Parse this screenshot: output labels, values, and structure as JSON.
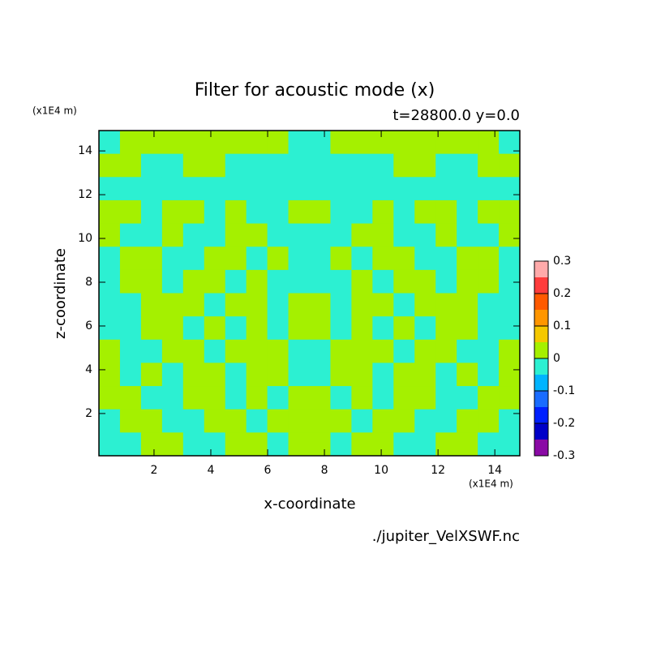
{
  "chart_data": {
    "type": "contour",
    "title": "Filter for acoustic mode (x)",
    "subtitle": "t=28800.0 y=0.0",
    "x_label": "x-coordinate",
    "y_label": "z-coordinate",
    "x_unit": "(x1E4 m)",
    "y_unit": "(x1E4 m)",
    "footer": "./jupiter_VelXSWF.nc",
    "xlim": [
      0.06,
      14.88
    ],
    "ylim": [
      0.07,
      14.93
    ],
    "xticks": [
      2,
      4,
      6,
      8,
      10,
      12,
      14
    ],
    "yticks": [
      2,
      4,
      6,
      8,
      10,
      12,
      14
    ],
    "z": [
      [
        -0.02,
        0.02,
        0.02,
        0.02,
        0.02,
        0.02,
        0.02,
        0.02,
        0.02,
        -0.02,
        -0.02,
        0.02,
        0.02,
        0.02,
        0.02,
        0.02,
        0.02,
        0.02,
        0.02,
        -0.02
      ],
      [
        0.02,
        0.02,
        -0.02,
        -0.02,
        0.02,
        0.02,
        -0.02,
        -0.02,
        -0.02,
        -0.02,
        -0.02,
        -0.02,
        -0.02,
        -0.02,
        0.02,
        0.02,
        -0.02,
        -0.02,
        0.02,
        0.02
      ],
      [
        -0.02,
        -0.02,
        -0.02,
        -0.02,
        -0.02,
        -0.02,
        -0.02,
        -0.02,
        -0.02,
        -0.02,
        -0.02,
        -0.02,
        -0.02,
        -0.02,
        -0.02,
        -0.02,
        -0.02,
        -0.02,
        -0.02,
        -0.02
      ],
      [
        0.02,
        0.02,
        -0.02,
        0.02,
        0.02,
        -0.02,
        0.02,
        -0.02,
        -0.02,
        0.02,
        0.02,
        -0.02,
        -0.02,
        0.02,
        -0.02,
        0.02,
        0.02,
        -0.02,
        0.02,
        0.02
      ],
      [
        0.02,
        -0.02,
        -0.02,
        0.02,
        -0.02,
        -0.02,
        0.02,
        0.02,
        -0.02,
        -0.02,
        -0.02,
        -0.02,
        0.02,
        0.02,
        -0.02,
        -0.02,
        0.02,
        -0.02,
        -0.02,
        0.02
      ],
      [
        -0.02,
        0.02,
        0.02,
        -0.02,
        -0.02,
        0.02,
        0.02,
        -0.02,
        0.02,
        -0.02,
        -0.02,
        0.02,
        -0.02,
        0.02,
        0.02,
        -0.02,
        -0.02,
        0.02,
        0.02,
        -0.02
      ],
      [
        -0.02,
        0.02,
        0.02,
        -0.02,
        0.02,
        0.02,
        -0.02,
        0.02,
        -0.02,
        -0.02,
        -0.02,
        -0.02,
        0.02,
        -0.02,
        0.02,
        0.02,
        -0.02,
        0.02,
        0.02,
        -0.02
      ],
      [
        -0.02,
        -0.02,
        0.02,
        0.02,
        0.02,
        -0.02,
        0.02,
        0.02,
        -0.02,
        0.02,
        0.02,
        -0.02,
        0.02,
        0.02,
        -0.02,
        0.02,
        0.02,
        0.02,
        -0.02,
        -0.02
      ],
      [
        -0.02,
        -0.02,
        0.02,
        0.02,
        -0.02,
        0.02,
        -0.02,
        0.02,
        -0.02,
        0.02,
        0.02,
        -0.02,
        0.02,
        -0.02,
        0.02,
        -0.02,
        0.02,
        0.02,
        -0.02,
        -0.02
      ],
      [
        0.02,
        -0.02,
        -0.02,
        0.02,
        0.02,
        -0.02,
        0.02,
        0.02,
        0.02,
        -0.02,
        -0.02,
        0.02,
        0.02,
        0.02,
        -0.02,
        0.02,
        0.02,
        -0.02,
        -0.02,
        0.02
      ],
      [
        0.02,
        -0.02,
        0.02,
        -0.02,
        0.02,
        0.02,
        -0.02,
        0.02,
        0.02,
        -0.02,
        -0.02,
        0.02,
        0.02,
        -0.02,
        0.02,
        0.02,
        -0.02,
        0.02,
        -0.02,
        0.02
      ],
      [
        0.02,
        0.02,
        -0.02,
        -0.02,
        0.02,
        0.02,
        -0.02,
        0.02,
        -0.02,
        0.02,
        0.02,
        -0.02,
        0.02,
        -0.02,
        0.02,
        0.02,
        -0.02,
        -0.02,
        0.02,
        0.02
      ],
      [
        -0.02,
        0.02,
        0.02,
        -0.02,
        -0.02,
        0.02,
        0.02,
        -0.02,
        0.02,
        0.02,
        0.02,
        0.02,
        -0.02,
        0.02,
        0.02,
        -0.02,
        -0.02,
        0.02,
        0.02,
        -0.02
      ],
      [
        -0.02,
        -0.02,
        0.02,
        0.02,
        -0.02,
        -0.02,
        0.02,
        0.02,
        -0.02,
        0.02,
        0.02,
        -0.02,
        0.02,
        0.02,
        -0.02,
        -0.02,
        0.02,
        0.02,
        -0.02,
        -0.02
      ]
    ],
    "colorbar": {
      "levels": [
        -0.3,
        -0.25,
        -0.2,
        -0.15,
        -0.1,
        -0.05,
        0,
        0.05,
        0.1,
        0.15,
        0.2,
        0.25,
        0.3
      ],
      "colors": [
        "#8a0aa5",
        "#0000c8",
        "#0020ff",
        "#1a6cff",
        "#00b4ff",
        "#2cf0d2",
        "#a5f000",
        "#f5c800",
        "#ff9600",
        "#ff5a00",
        "#ff3c3c",
        "#ffaaaa"
      ],
      "ticks": [
        -0.3,
        -0.2,
        -0.1,
        0,
        0.1,
        0.2,
        0.3
      ]
    }
  }
}
